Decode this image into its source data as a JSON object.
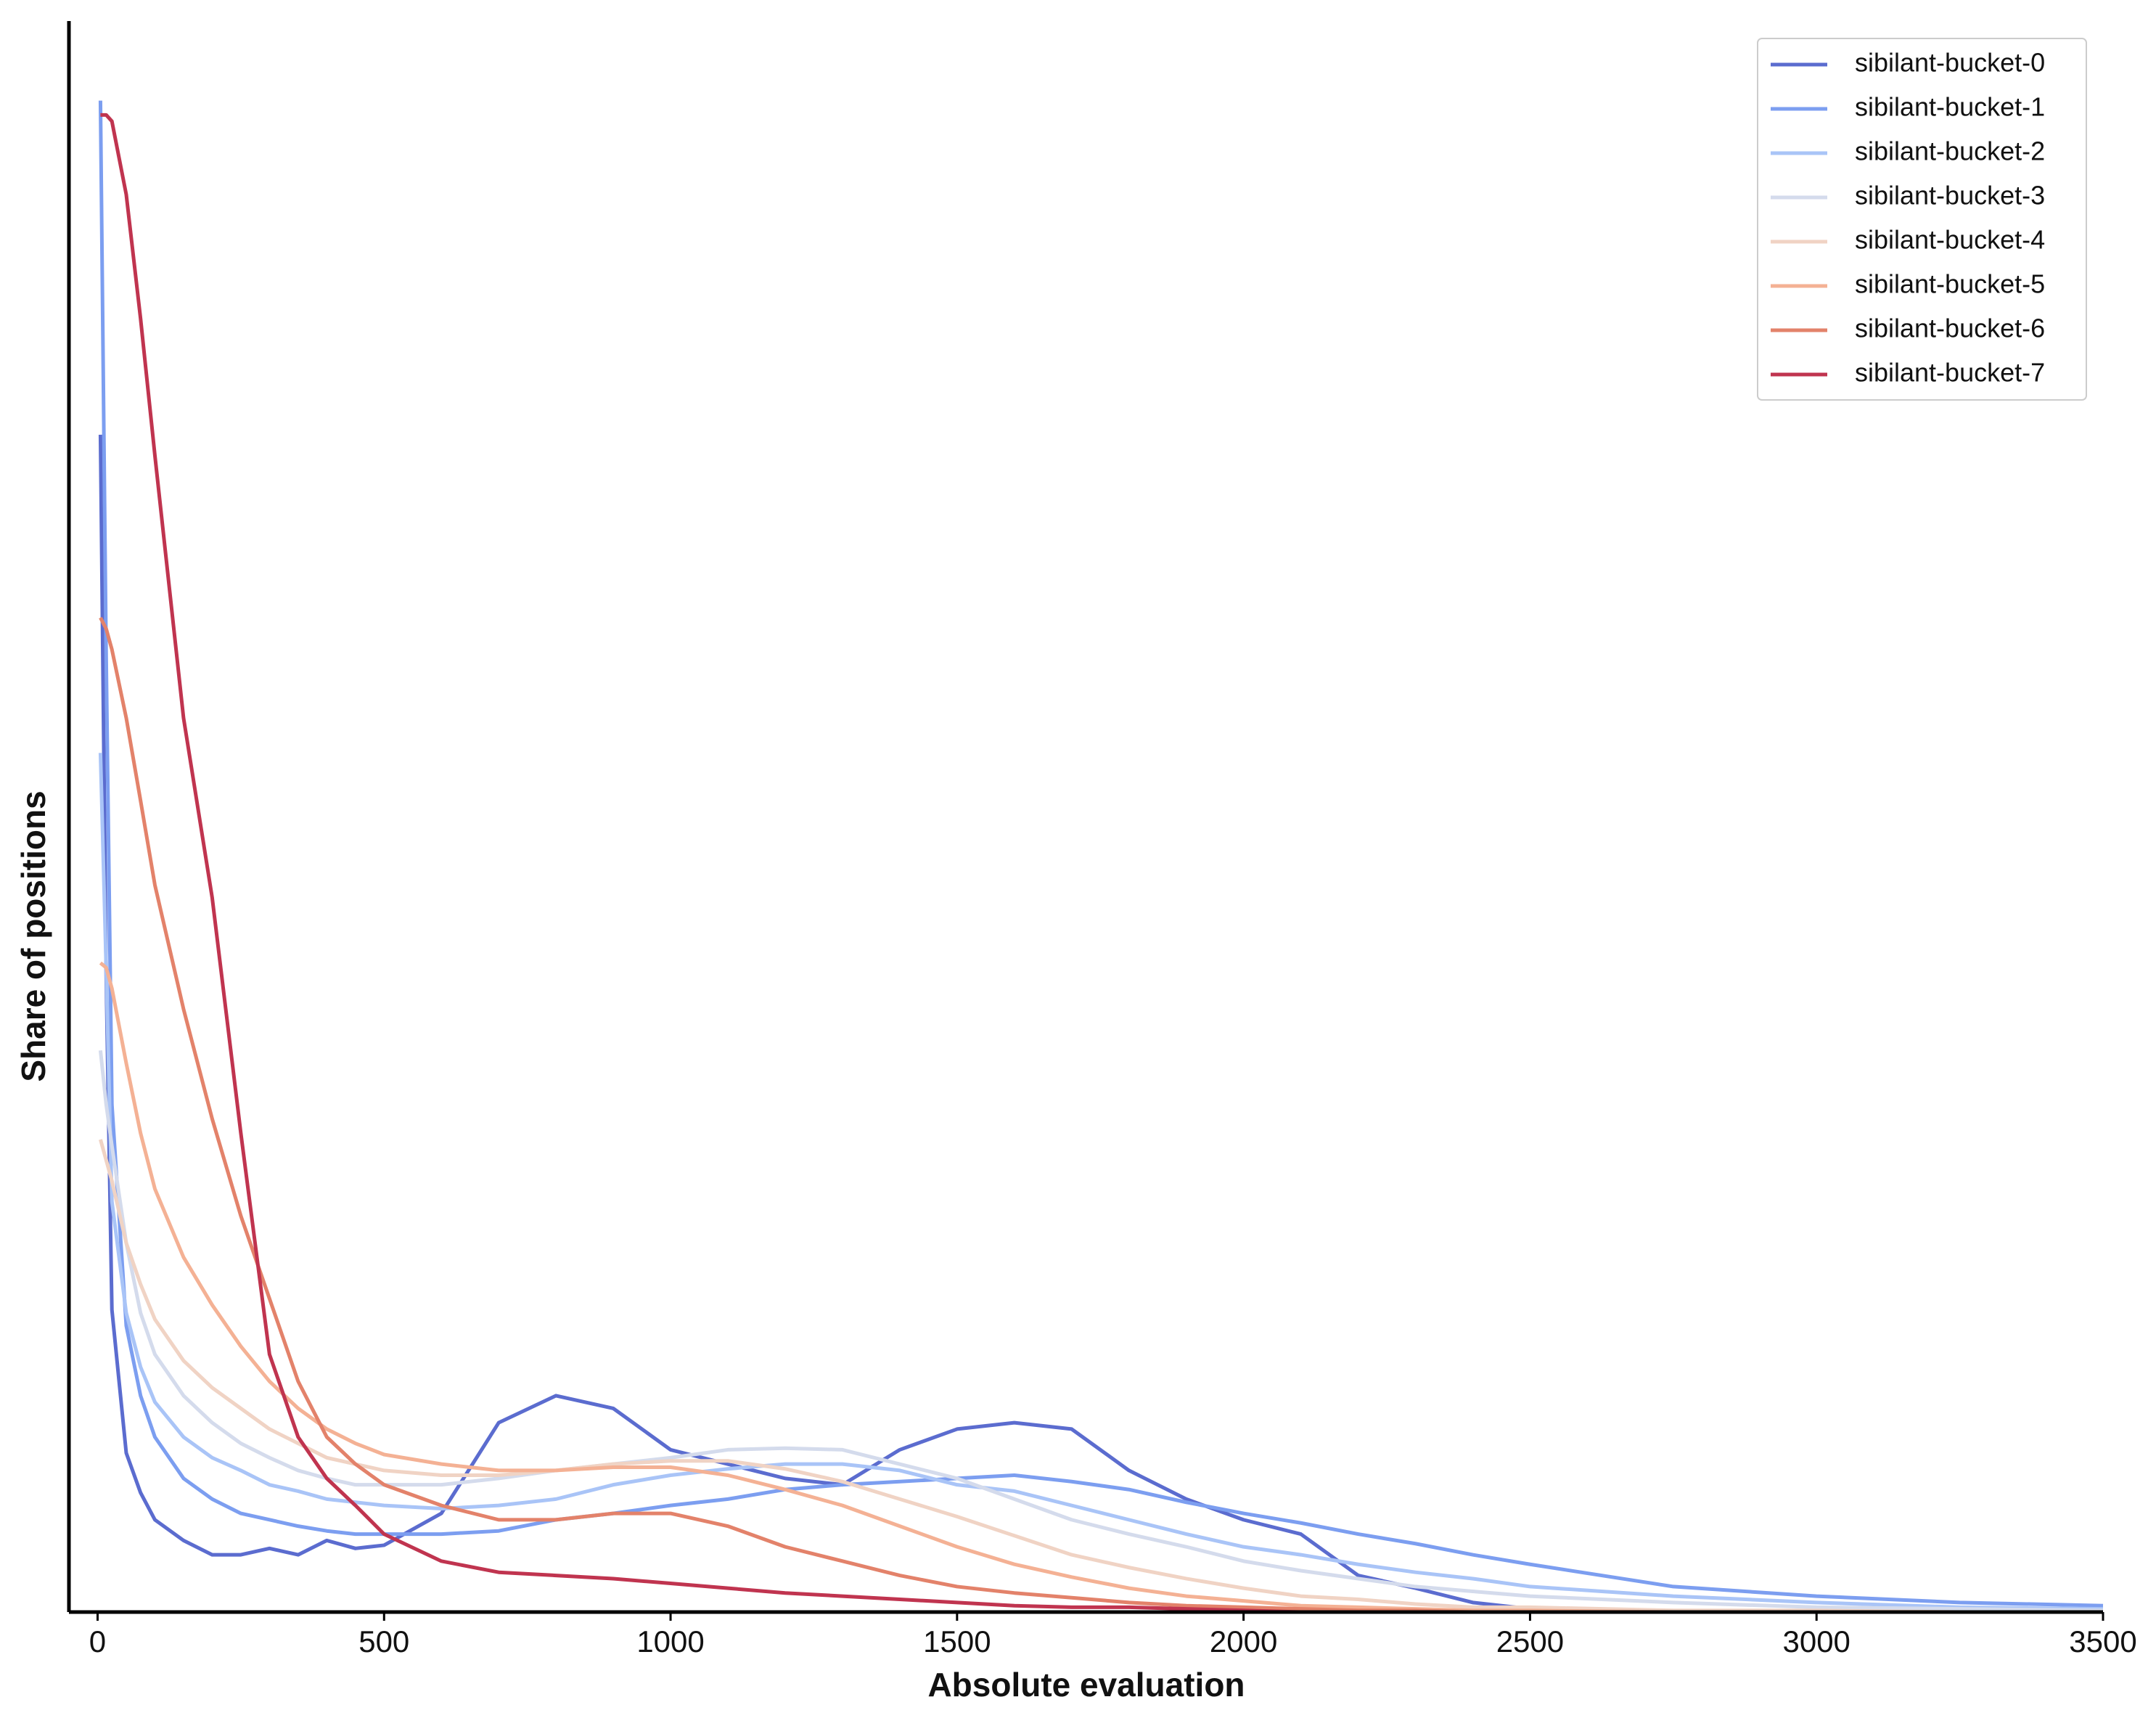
{
  "chart_data": {
    "type": "line",
    "xlabel": "Absolute evaluation",
    "ylabel": "Share of positions",
    "x": [
      5,
      15,
      25,
      50,
      75,
      100,
      150,
      200,
      250,
      300,
      350,
      400,
      450,
      500,
      600,
      700,
      800,
      900,
      1000,
      1100,
      1200,
      1300,
      1400,
      1500,
      1600,
      1700,
      1800,
      1900,
      2000,
      2100,
      2200,
      2300,
      2400,
      2500,
      2750,
      3000,
      3250,
      3500
    ],
    "series": [
      {
        "name": "sibilant-bucket-0",
        "color": "#5b6ccf",
        "values": [
          74,
          40,
          19,
          10,
          7.5,
          5.8,
          4.5,
          3.6,
          3.6,
          4,
          3.6,
          4.5,
          4,
          4.2,
          6.2,
          11.9,
          13.6,
          12.8,
          10.2,
          9.3,
          8.4,
          8,
          10.2,
          11.5,
          11.9,
          11.5,
          8.9,
          7.1,
          5.8,
          4.9,
          2.3,
          1.5,
          0.6,
          0.2,
          0,
          0,
          0,
          0
        ]
      },
      {
        "name": "sibilant-bucket-1",
        "color": "#7c9ef0",
        "values": [
          95,
          60,
          31.9,
          18,
          13.6,
          11,
          8.4,
          7.1,
          6.2,
          5.8,
          5.4,
          5.1,
          4.9,
          4.9,
          4.9,
          5.1,
          5.8,
          6.2,
          6.7,
          7.1,
          7.7,
          8,
          8.2,
          8.4,
          8.6,
          8.2,
          7.7,
          6.9,
          6.2,
          5.6,
          4.9,
          4.3,
          3.6,
          3,
          1.6,
          1,
          0.6,
          0.4
        ]
      },
      {
        "name": "sibilant-bucket-2",
        "color": "#a9c4f7",
        "values": [
          54,
          40.5,
          25.8,
          18.8,
          15.4,
          13.2,
          11,
          9.7,
          8.9,
          8,
          7.6,
          7.1,
          6.9,
          6.7,
          6.5,
          6.7,
          7.1,
          8,
          8.6,
          9,
          9.3,
          9.3,
          8.9,
          8,
          7.6,
          6.7,
          5.8,
          4.9,
          4.1,
          3.6,
          3,
          2.5,
          2.1,
          1.6,
          1,
          0.6,
          0.3,
          0.2
        ]
      },
      {
        "name": "sibilant-bucket-3",
        "color": "#d4dbec",
        "values": [
          35.3,
          31.9,
          29.3,
          23.2,
          18.8,
          16.2,
          13.6,
          11.9,
          10.6,
          9.7,
          8.9,
          8.4,
          8,
          8,
          8,
          8.4,
          8.9,
          9.3,
          9.7,
          10.2,
          10.3,
          10.2,
          9.3,
          8.4,
          7.1,
          5.8,
          4.9,
          4.1,
          3.2,
          2.6,
          2.1,
          1.6,
          1.3,
          1,
          0.6,
          0.3,
          0.2,
          0.1
        ]
      },
      {
        "name": "sibilant-bucket-4",
        "color": "#f0d3c4",
        "values": [
          29.7,
          28.4,
          27.1,
          23.2,
          20.6,
          18.4,
          15.8,
          14.1,
          12.8,
          11.5,
          10.6,
          9.7,
          9.3,
          8.9,
          8.6,
          8.6,
          8.9,
          9.3,
          9.5,
          9.5,
          9,
          8.2,
          7.1,
          6,
          4.8,
          3.6,
          2.8,
          2.1,
          1.5,
          1,
          0.8,
          0.5,
          0.3,
          0.3,
          0.1,
          0.1,
          0,
          0
        ]
      },
      {
        "name": "sibilant-bucket-5",
        "color": "#f4b194",
        "values": [
          40.8,
          40.5,
          39.2,
          34.5,
          30.1,
          26.6,
          22.3,
          19.3,
          16.7,
          14.5,
          12.8,
          11.5,
          10.6,
          9.9,
          9.3,
          8.9,
          8.9,
          9.1,
          9.1,
          8.6,
          7.7,
          6.7,
          5.4,
          4.1,
          3,
          2.2,
          1.5,
          1,
          0.7,
          0.4,
          0.3,
          0.2,
          0.1,
          0.1,
          0,
          0,
          0,
          0
        ]
      },
      {
        "name": "sibilant-bucket-6",
        "color": "#e3826a",
        "values": [
          62.5,
          61.8,
          60.5,
          56.2,
          51,
          45.7,
          37.9,
          31,
          24.9,
          19.7,
          14.5,
          11,
          9.3,
          8,
          6.7,
          5.8,
          5.8,
          6.2,
          6.2,
          5.4,
          4.1,
          3.2,
          2.3,
          1.6,
          1.2,
          0.9,
          0.6,
          0.4,
          0.3,
          0.2,
          0.1,
          0.1,
          0,
          0,
          0,
          0,
          0,
          0
        ]
      },
      {
        "name": "sibilant-bucket-7",
        "color": "#c0344f",
        "values": [
          94.1,
          94.1,
          93.7,
          89.1,
          81.3,
          72.7,
          56.2,
          44.9,
          30.1,
          16.2,
          11,
          8.4,
          6.7,
          4.9,
          3.2,
          2.5,
          2.3,
          2.1,
          1.8,
          1.5,
          1.2,
          1,
          0.8,
          0.6,
          0.4,
          0.3,
          0.3,
          0.2,
          0.1,
          0,
          0,
          0,
          0,
          0,
          0,
          0,
          0,
          0
        ]
      }
    ],
    "xlim": [
      -50,
      3500
    ],
    "xticks": [
      0,
      500,
      1000,
      1500,
      2000,
      2500,
      3000,
      3500
    ],
    "ylim": [
      0,
      100
    ],
    "legend": "upper right",
    "grid": false
  }
}
